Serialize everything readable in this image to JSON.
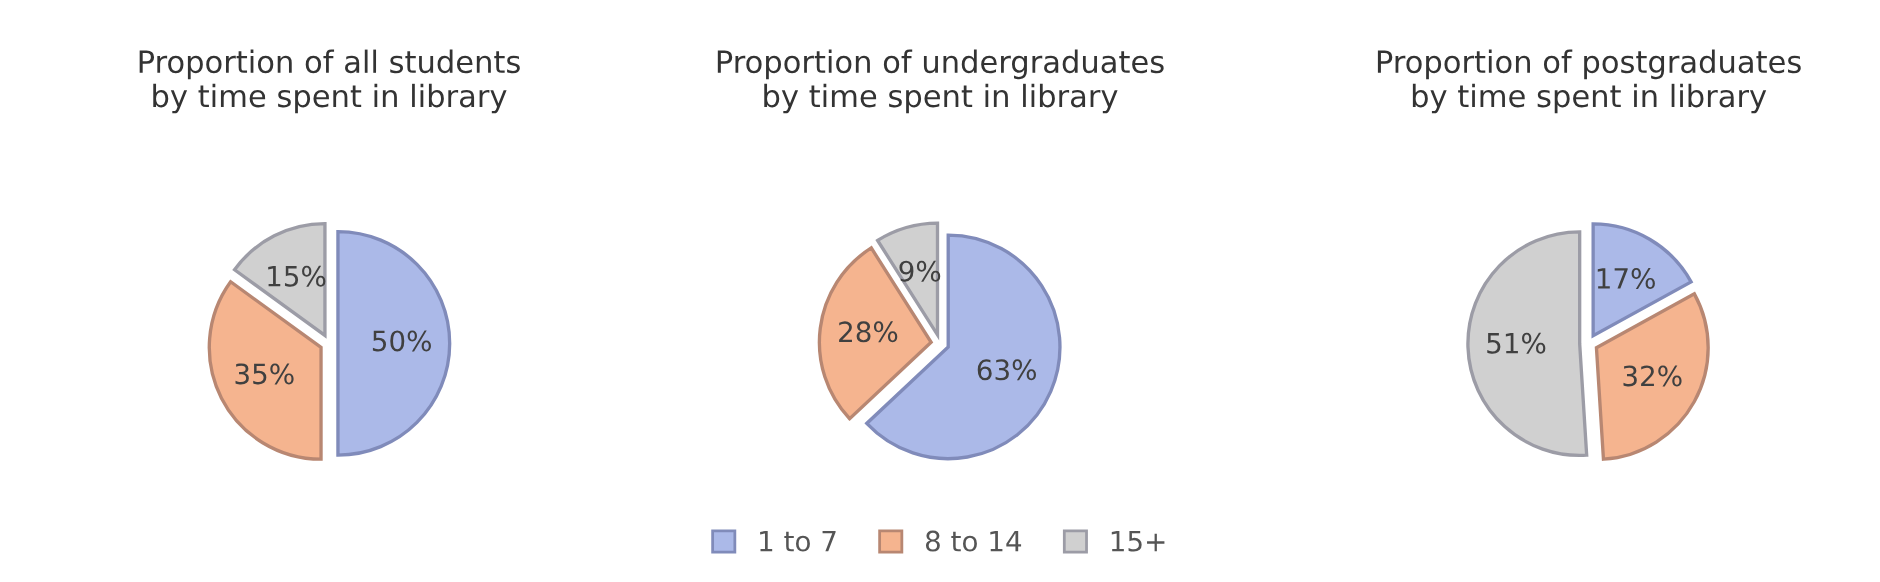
{
  "chart_data": [
    {
      "type": "pie",
      "title": "Proportion of all students\nby time spent in library",
      "categories": [
        "1 to 7",
        "8 to 14",
        "15+"
      ],
      "values": [
        50,
        35,
        15
      ],
      "value_labels": [
        "50%",
        "35%",
        "15%"
      ],
      "colors": [
        "#abb9e8",
        "#f5b48f",
        "#d0d0d0"
      ],
      "legend": "bottom"
    },
    {
      "type": "pie",
      "title": "Proportion of undergraduates\nby time spent in library",
      "categories": [
        null,
        null,
        null
      ],
      "values": [
        63,
        28,
        9
      ],
      "value_labels": [
        "63%",
        "28%",
        "9%"
      ],
      "colors": [
        "#abb9e8",
        "#f5b48f",
        "#d0d0d0"
      ]
    },
    {
      "type": "pie",
      "title": "Proportion of postgraduates\nby time spent in library",
      "categories": [
        null,
        null,
        null
      ],
      "values": [
        17,
        32,
        51
      ],
      "value_labels": [
        "17%",
        "32%",
        "51%"
      ],
      "colors": [
        "#abb9e8",
        "#f5b48f",
        "#d0d0d0"
      ]
    }
  ]
}
